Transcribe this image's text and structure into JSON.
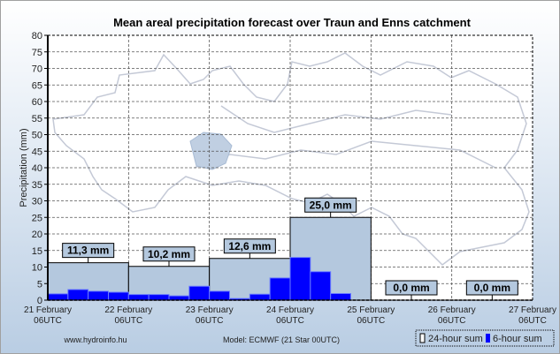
{
  "chart_data": {
    "type": "bar",
    "title": "Mean areal precipitation forecast over Traun and Enns catchment",
    "ylabel": "Precipitation (mm)",
    "xlabel": "",
    "ylim": [
      0,
      80
    ],
    "yticks": [
      0,
      5,
      10,
      15,
      20,
      25,
      30,
      35,
      40,
      45,
      50,
      55,
      60,
      65,
      70,
      75,
      80
    ],
    "grid": true,
    "x_ticks": [
      {
        "line1": "21 February",
        "line2": "06UTC"
      },
      {
        "line1": "22 February",
        "line2": "06UTC"
      },
      {
        "line1": "23 February",
        "line2": "06UTC"
      },
      {
        "line1": "24 February",
        "line2": "06UTC"
      },
      {
        "line1": "25 February",
        "line2": "06UTC"
      },
      {
        "line1": "26 February",
        "line2": "06UTC"
      },
      {
        "line1": "27 February",
        "line2": "06UTC"
      }
    ],
    "series": [
      {
        "name": "24-hour sum",
        "color": "#b4c8de",
        "values": [
          11.3,
          10.2,
          12.6,
          25.0,
          0.0,
          0.0
        ],
        "labels": [
          "11,3 mm",
          "10,2 mm",
          "12,6 mm",
          "25,0 mm",
          "0,0 mm",
          "0,0 mm"
        ]
      },
      {
        "name": "6-hour sum",
        "color": "#0000ff",
        "values": [
          1.9,
          3.2,
          2.7,
          2.4,
          1.7,
          1.7,
          1.3,
          4.2,
          2.7,
          0.5,
          1.8,
          6.7,
          12.9,
          8.6,
          2.0,
          0.0,
          0,
          0,
          0,
          0,
          0,
          0,
          0,
          0
        ]
      }
    ],
    "legend_position": "bottom-right"
  },
  "footer": {
    "source": "www.hydroinfo.hu",
    "model": "Model:  ECMWF (21  Star 00UTC)"
  },
  "legend": {
    "daily": "24-hour sum",
    "sixhour": "6-hour sum"
  }
}
